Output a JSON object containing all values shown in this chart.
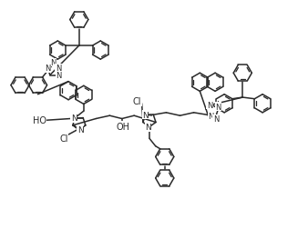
{
  "bg_color": "#ffffff",
  "line_color": "#2a2a2a",
  "fig_width": 3.38,
  "fig_height": 2.53,
  "dpi": 100,
  "xlim": [
    0,
    10
  ],
  "ylim": [
    0,
    7.5
  ]
}
